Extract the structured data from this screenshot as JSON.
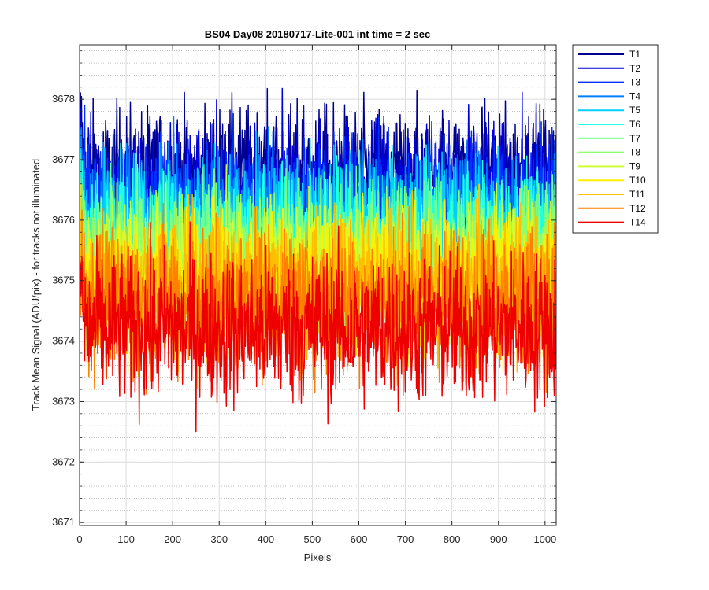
{
  "chart_data": {
    "type": "line",
    "title": "BS04 Day08 20180717-Lite-001 int time = 2 sec",
    "xlabel": "Pixels",
    "ylabel": "Track Mean Signal (ADU/pix) - for tracks not illuminated",
    "xlim": [
      0,
      1024
    ],
    "ylim": [
      3670.95,
      3678.9
    ],
    "x_ticks": [
      0,
      100,
      200,
      300,
      400,
      500,
      600,
      700,
      800,
      900,
      1000
    ],
    "y_ticks": [
      3671,
      3672,
      3673,
      3674,
      3675,
      3676,
      3677,
      3678
    ],
    "grid": "on",
    "minor_grid_y": "on",
    "legend_position": "outside-top-right",
    "n_points": 1024,
    "series": [
      {
        "name": "T1",
        "color": "#00008f",
        "mean": 3676.7,
        "noise_amplitude": 1.1
      },
      {
        "name": "T2",
        "color": "#0000df",
        "mean": 3676.5,
        "noise_amplitude": 1.1
      },
      {
        "name": "T3",
        "color": "#0030ff",
        "mean": 3676.2,
        "noise_amplitude": 1.1
      },
      {
        "name": "T4",
        "color": "#0080ff",
        "mean": 3676.0,
        "noise_amplitude": 1.1
      },
      {
        "name": "T5",
        "color": "#00cfff",
        "mean": 3675.9,
        "noise_amplitude": 1.1
      },
      {
        "name": "T6",
        "color": "#20ffdf",
        "mean": 3675.7,
        "noise_amplitude": 1.1
      },
      {
        "name": "T7",
        "color": "#70ff8f",
        "mean": 3675.5,
        "noise_amplitude": 1.1
      },
      {
        "name": "T8",
        "color": "#8fff70",
        "mean": 3675.3,
        "noise_amplitude": 1.1
      },
      {
        "name": "T9",
        "color": "#cfff30",
        "mean": 3675.2,
        "noise_amplitude": 1.1
      },
      {
        "name": "T10",
        "color": "#ffef00",
        "mean": 3675.0,
        "noise_amplitude": 1.1
      },
      {
        "name": "T11",
        "color": "#ffbf00",
        "mean": 3674.9,
        "noise_amplitude": 1.2
      },
      {
        "name": "T12",
        "color": "#ff7f00",
        "mean": 3674.7,
        "noise_amplitude": 1.2
      },
      {
        "name": "T14",
        "color": "#ef0000",
        "mean": 3674.2,
        "noise_amplitude": 1.2
      }
    ]
  }
}
